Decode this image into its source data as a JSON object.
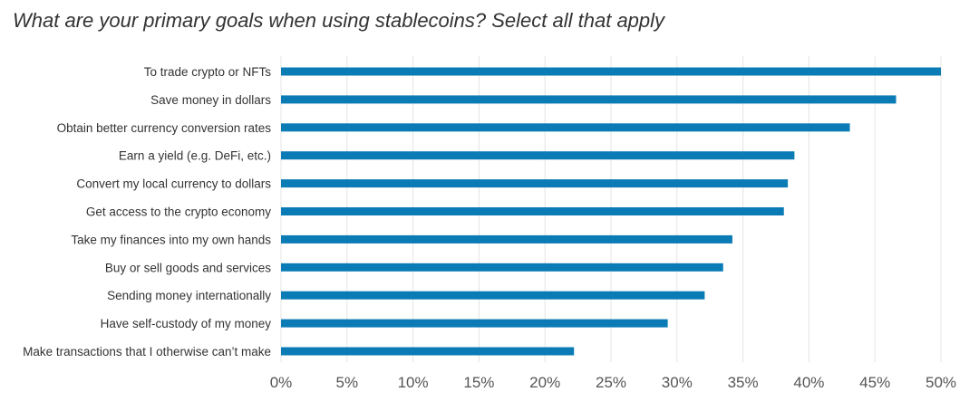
{
  "chart_data": {
    "type": "bar",
    "orientation": "horizontal",
    "title": "What are your primary goals when using stablecoins? Select all that apply",
    "categories": [
      "To trade crypto or NFTs",
      "Save money in dollars",
      "Obtain better currency conversion rates",
      "Earn a yield (e.g. DeFi, etc.)",
      "Convert my local currency to dollars",
      "Get access to the crypto economy",
      "Take my finances into my own hands",
      "Buy or sell goods and services",
      "Sending money internationally",
      "Have self-custody of my money",
      "Make transactions that I otherwise can’t make"
    ],
    "values": [
      50,
      46.6,
      43.1,
      38.9,
      38.4,
      38.1,
      34.2,
      33.5,
      32.1,
      29.3,
      22.2
    ],
    "xlim": [
      0,
      50
    ],
    "ticks": [
      0,
      5,
      10,
      15,
      20,
      25,
      30,
      35,
      40,
      45,
      50
    ],
    "tick_labels": [
      "0%",
      "5%",
      "10%",
      "15%",
      "20%",
      "25%",
      "30%",
      "35%",
      "40%",
      "45%",
      "50%"
    ],
    "grid": true,
    "bar_color": "#0a7bb5",
    "grid_color": "#e4e4e4"
  }
}
